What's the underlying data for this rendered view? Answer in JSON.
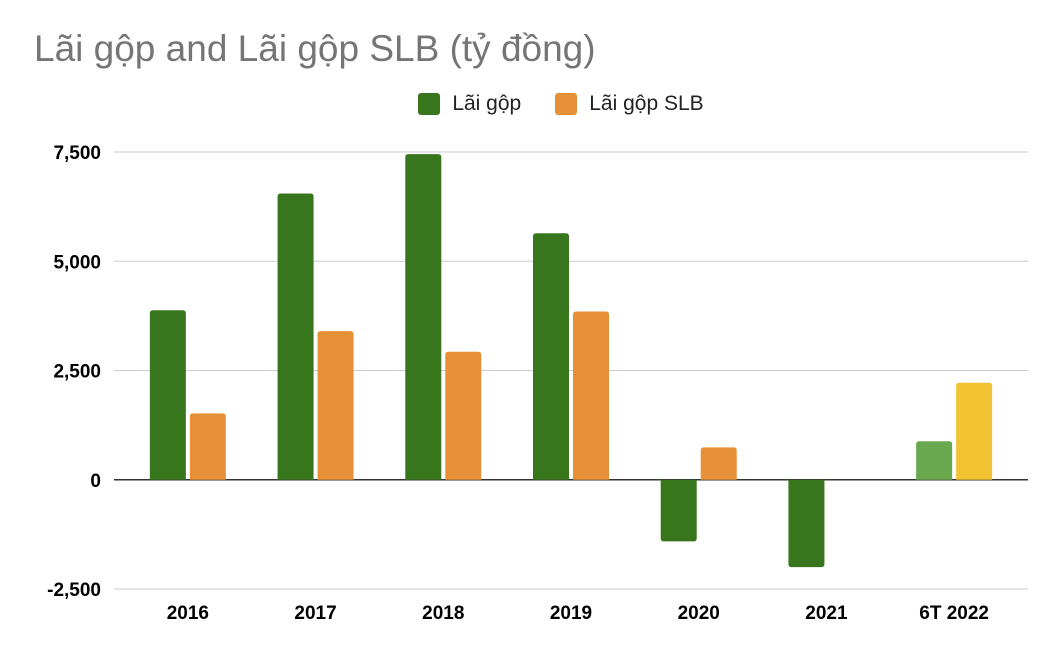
{
  "chart_data": {
    "type": "bar",
    "title": "Lãi gộp and Lãi gộp SLB (tỷ đồng)",
    "categories": [
      "2016",
      "2017",
      "2018",
      "2019",
      "2020",
      "2021",
      "6T 2022"
    ],
    "series": [
      {
        "name": "Lãi gộp",
        "color": "#38761d",
        "values": [
          3880,
          6550,
          7450,
          5640,
          -1410,
          -2000,
          880
        ],
        "highlight_colors": [
          null,
          null,
          null,
          null,
          null,
          null,
          "#6aa84f"
        ]
      },
      {
        "name": "Lãi gộp SLB",
        "color": "#e69138",
        "values": [
          1520,
          3400,
          2930,
          3850,
          740,
          0,
          2220
        ],
        "highlight_colors": [
          null,
          null,
          null,
          null,
          null,
          null,
          "#f1c232"
        ]
      }
    ],
    "yticks": [
      -2500,
      0,
      2500,
      5000,
      7500
    ],
    "ytick_labels": [
      "-2,500",
      "0",
      "2,500",
      "5,000",
      "7,500"
    ],
    "ylim": [
      -2500,
      7500
    ],
    "grid": true,
    "legend_position": "top"
  }
}
